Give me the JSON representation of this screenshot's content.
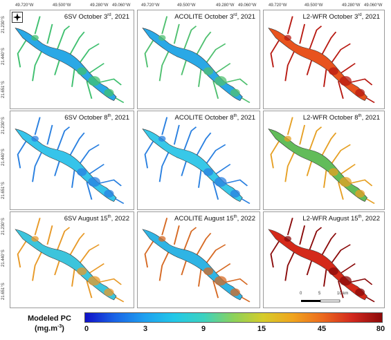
{
  "x_ticks": [
    "49.720°W",
    "49.500°W",
    "49.280°W",
    "49.060°W"
  ],
  "y_ticks": [
    "21.230°S",
    "21.440°S",
    "21.651°S"
  ],
  "panels": [
    {
      "method": "6SV",
      "date": "October 3",
      "sup": "rd",
      "year": ", 2021",
      "title_color": "#111"
    },
    {
      "method": "ACOLITE",
      "date": "October 3",
      "sup": "rd",
      "year": ", 2021"
    },
    {
      "method": "L2-WFR",
      "date": "October 3",
      "sup": "rd",
      "year": ", 2021"
    },
    {
      "method": "6SV",
      "date": "October 8",
      "sup": "th",
      "year": ", 2021"
    },
    {
      "method": "ACOLITE",
      "date": "October 8",
      "sup": "th",
      "year": ", 2021"
    },
    {
      "method": "L2-WFR",
      "date": "October 8",
      "sup": "th",
      "year": ", 2021"
    },
    {
      "method": "6SV",
      "date": "August 15",
      "sup": "th",
      "year": ", 2022"
    },
    {
      "method": "ACOLITE",
      "date": "August 15",
      "sup": "th",
      "year": ", 2022"
    },
    {
      "method": "L2-WFR",
      "date": "August 15",
      "sup": "th",
      "year": ", 2022"
    }
  ],
  "scale": {
    "labels": [
      "0",
      "5",
      "10 km"
    ]
  },
  "legend": {
    "title_line1": "Modeled PC",
    "title_line2": "(mg.m",
    "title_sup": "-3",
    "title_end": ")",
    "ticks": [
      "0",
      "3",
      "9",
      "15",
      "45",
      "80"
    ]
  },
  "colors": {
    "panel_main": [
      "#2aa8e6",
      "#2aa8e6",
      "#e8531e",
      "#36c4ea",
      "#38c8e8",
      "#62bc5a",
      "#3cc4dc",
      "#2fb4e4",
      "#d42a1a"
    ],
    "panel_accent": [
      "#40c070",
      "#50c070",
      "#b81a12",
      "#2a80e0",
      "#2a80e0",
      "#e6a024",
      "#e89a28",
      "#d66a24",
      "#8a0a0a"
    ]
  }
}
